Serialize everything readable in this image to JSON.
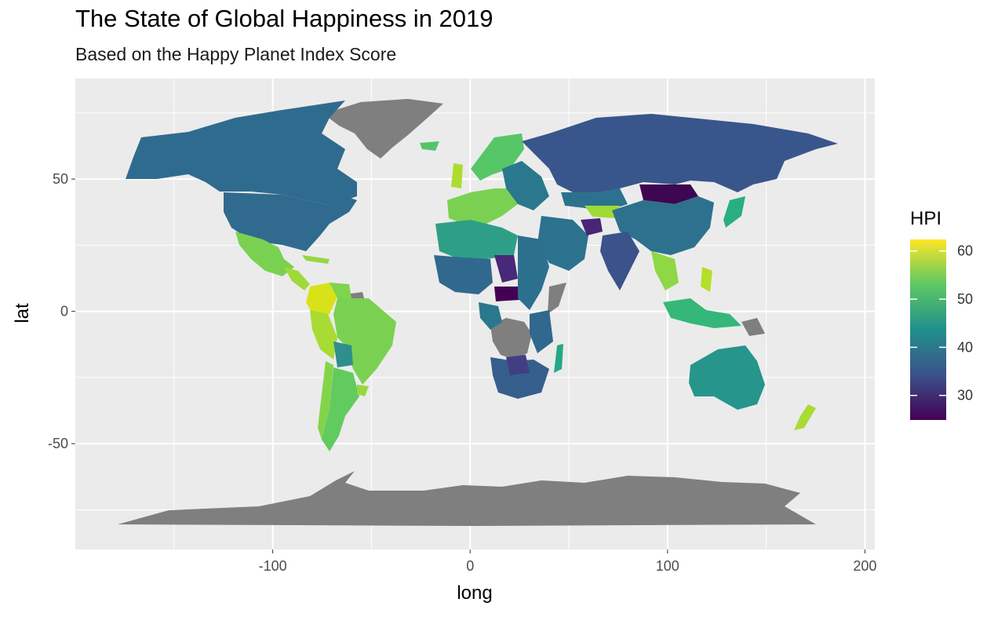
{
  "chart_data": {
    "type": "choropleth-map",
    "title": "The State of Global Happiness in 2019",
    "subtitle": "Based on the Happy Planet Index Score",
    "xlabel": "long",
    "ylabel": "lat",
    "xlim": [
      -200,
      205
    ],
    "ylim": [
      -90,
      88
    ],
    "x_ticks": [
      -100,
      0,
      100,
      200
    ],
    "x_tick_labels": [
      "-100",
      "0",
      "100",
      "200"
    ],
    "y_ticks": [
      -50,
      0,
      50
    ],
    "y_tick_labels": [
      "-50",
      "0",
      "50"
    ],
    "grid": true,
    "background": "#ebebeb",
    "na_color": "#7f7f7f",
    "legend": {
      "title": "HPI",
      "position": "right",
      "palette": "viridis",
      "range": [
        24.9,
        62.4
      ],
      "breaks": [
        30,
        40,
        50,
        60
      ],
      "break_labels": [
        "30",
        "40",
        "50",
        "60"
      ],
      "colors": [
        "#440154",
        "#3b528b",
        "#21908c",
        "#5dc863",
        "#fde725"
      ]
    },
    "regions": [
      {
        "name": "Canada",
        "hpi": 37.4
      },
      {
        "name": "United States",
        "hpi": 37.3
      },
      {
        "name": "Mexico",
        "hpi": 52.6
      },
      {
        "name": "Guatemala",
        "hpi": 51.5
      },
      {
        "name": "Cuba",
        "hpi": 55.3
      },
      {
        "name": "Colombia",
        "hpi": 61.5
      },
      {
        "name": "Venezuela",
        "hpi": 52.1
      },
      {
        "name": "Ecuador",
        "hpi": 58.2
      },
      {
        "name": "Peru",
        "hpi": 55.0
      },
      {
        "name": "Brazil",
        "hpi": 53.3
      },
      {
        "name": "Bolivia",
        "hpi": 42.2
      },
      {
        "name": "Paraguay",
        "hpi": 49.5
      },
      {
        "name": "Chile",
        "hpi": 53.5
      },
      {
        "name": "Argentina",
        "hpi": 51.0
      },
      {
        "name": "Uruguay",
        "hpi": 55.4
      },
      {
        "name": "Iceland",
        "hpi": 51.2
      },
      {
        "name": "United Kingdom",
        "hpi": 56.6
      },
      {
        "name": "Norway",
        "hpi": 53.8
      },
      {
        "name": "Sweden",
        "hpi": 48.7
      },
      {
        "name": "Finland",
        "hpi": 45.3
      },
      {
        "name": "Spain",
        "hpi": 53.5
      },
      {
        "name": "France",
        "hpi": 51.1
      },
      {
        "name": "Germany",
        "hpi": 52.3
      },
      {
        "name": "Italy",
        "hpi": 52.5
      },
      {
        "name": "Poland",
        "hpi": 46.2
      },
      {
        "name": "Ukraine",
        "hpi": 44.1
      },
      {
        "name": "Russia",
        "hpi": 34.5
      },
      {
        "name": "Kazakhstan",
        "hpi": 40.3
      },
      {
        "name": "Kyrgyzstan",
        "hpi": 53.5
      },
      {
        "name": "Mongolia",
        "hpi": 28.5
      },
      {
        "name": "China",
        "hpi": 40.2
      },
      {
        "name": "Japan",
        "hpi": 47.5
      },
      {
        "name": "Afghanistan",
        "hpi": 29.5
      },
      {
        "name": "India",
        "hpi": 36.7
      },
      {
        "name": "Vietnam",
        "hpi": 50.2
      },
      {
        "name": "Philippines",
        "hpi": 56.4
      },
      {
        "name": "Indonesia",
        "hpi": 48.2
      },
      {
        "name": "Australia",
        "hpi": 45.8
      },
      {
        "name": "New Zealand",
        "hpi": 58.9
      },
      {
        "name": "Morocco",
        "hpi": 48.9
      },
      {
        "name": "Algeria",
        "hpi": 47.5
      },
      {
        "name": "Libya",
        "hpi": 41.5
      },
      {
        "name": "Egypt",
        "hpi": 42.8
      },
      {
        "name": "Saudi Arabia",
        "hpi": 43.3
      },
      {
        "name": "Mali",
        "hpi": 36.1
      },
      {
        "name": "Niger",
        "hpi": 34.2
      },
      {
        "name": "Chad",
        "hpi": 28.6
      },
      {
        "name": "Central African Republic",
        "hpi": 24.9
      },
      {
        "name": "Sudan",
        "hpi": 39.2
      },
      {
        "name": "Ethiopia",
        "hpi": 41.1
      },
      {
        "name": "Kenya",
        "hpi": 44.6
      },
      {
        "name": "Tanzania",
        "hpi": 39.9
      },
      {
        "name": "Angola",
        "hpi": 39.4
      },
      {
        "name": "Zambia",
        "hpi": 34.5
      },
      {
        "name": "Zimbabwe",
        "hpi": 31.3
      },
      {
        "name": "South Africa",
        "hpi": 35.6
      },
      {
        "name": "Madagascar",
        "hpi": 47.6
      },
      {
        "name": "Greenland",
        "hpi": null
      },
      {
        "name": "Antarctica",
        "hpi": null
      },
      {
        "name": "Democratic Republic of the Congo",
        "hpi": null
      },
      {
        "name": "Somalia",
        "hpi": null
      },
      {
        "name": "Papua New Guinea",
        "hpi": null
      }
    ]
  }
}
